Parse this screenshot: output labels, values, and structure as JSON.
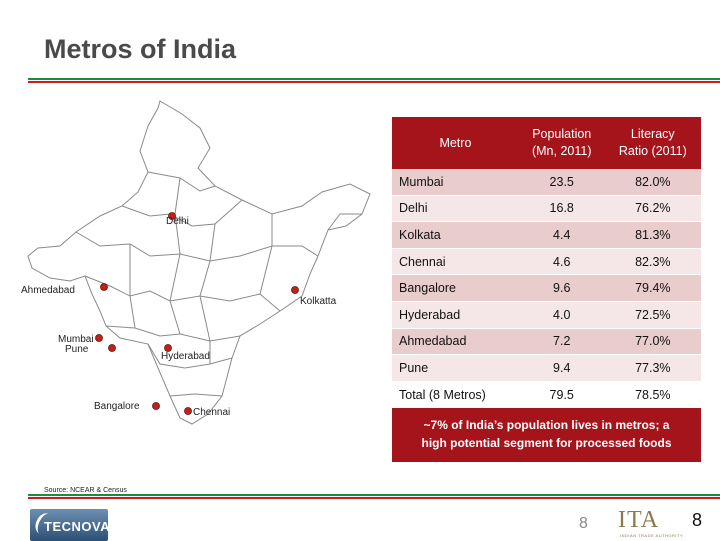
{
  "slide": {
    "title": "Metros of India",
    "source": "Source: NCEAR & Census",
    "slide_number": "8",
    "slide_number_faint": "8"
  },
  "table": {
    "headers": {
      "metro": "Metro",
      "population_line1": "Population",
      "population_line2": "(Mn, 2011)",
      "literacy_line1": "Literacy",
      "literacy_line2": "Ratio (2011)"
    },
    "rows": [
      {
        "metro": "Mumbai",
        "population": "23.5",
        "literacy": "82.0%"
      },
      {
        "metro": "Delhi",
        "population": "16.8",
        "literacy": "76.2%"
      },
      {
        "metro": "Kolkata",
        "population": "4.4",
        "literacy": "81.3%"
      },
      {
        "metro": "Chennai",
        "population": "4.6",
        "literacy": "82.3%"
      },
      {
        "metro": "Bangalore",
        "population": "9.6",
        "literacy": "79.4%"
      },
      {
        "metro": "Hyderabad",
        "population": "4.0",
        "literacy": "72.5%"
      },
      {
        "metro": "Ahmedabad",
        "population": "7.2",
        "literacy": "77.0%"
      },
      {
        "metro": "Pune",
        "population": "9.4",
        "literacy": "77.3%"
      },
      {
        "metro": "Total (8 Metros)",
        "population": "79.5",
        "literacy": "78.5%"
      }
    ]
  },
  "callout": {
    "line1": "~7% of India’s population lives in metros; a",
    "line2": "high potential segment for processed foods"
  },
  "map": {
    "cities": {
      "delhi": "Delhi",
      "ahmedabad": "Ahmedabad",
      "kolkatta": "Kolkatta",
      "mumbai": "Mumbai",
      "pune": "Pune",
      "hyderabad": "Hyderabad",
      "bangalore": "Bangalore",
      "chennai": "Chennai"
    },
    "colors": {
      "dot": "#c0221b",
      "outline": "#8a8a8a",
      "land": "#ffffff"
    }
  },
  "footer": {
    "tecnova_logo_text": "TECNOVA",
    "ita_logo_text": "ITA",
    "ita_tagline": "INDIAN TRADE AUTHORITY"
  },
  "colors": {
    "accent_red": "#a6141b",
    "row_odd": "#e9cccc",
    "row_even": "#f5e7e7",
    "stripe_green": "#1e8a3c",
    "stripe_red": "#c8201f",
    "title_gray": "#4a4a4a"
  }
}
